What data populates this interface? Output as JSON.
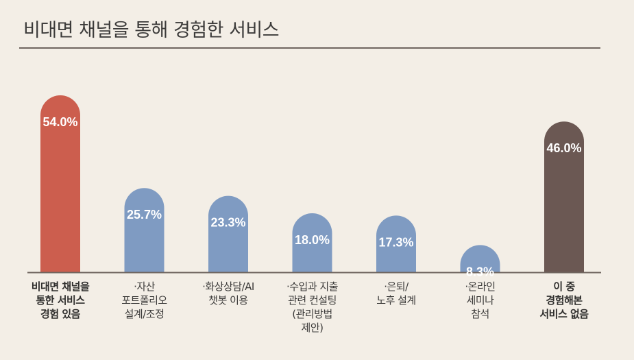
{
  "title": "비대면 채널을 통해 경험한 서비스",
  "chart_data": {
    "type": "bar",
    "title": "비대면 채널을 통해 경험한 서비스",
    "xlabel": "",
    "ylabel": "",
    "ylim": [
      0,
      54
    ],
    "grid": false,
    "categories": [
      "비대면 채널을\n통한 서비스\n경험 있음",
      "·자산\n포트폴리오\n설계/조정",
      "·화상상담/AI\n챗봇 이용",
      "·수입과 지출\n관련 컨설팅\n(관리방법\n제안)",
      "·은퇴/\n노후 설계",
      "·온라인\n세미나\n참석",
      "이 중\n경험해본\n서비스 없음"
    ],
    "values": [
      54.0,
      25.7,
      23.3,
      18.0,
      17.3,
      8.3,
      46.0
    ],
    "value_labels": [
      "54.0%",
      "25.7%",
      "23.3%",
      "18.0%",
      "17.3%",
      "8.3%",
      "46.0%"
    ],
    "colors": [
      "#cc5e4e",
      "#7f9bc2",
      "#7f9bc2",
      "#7f9bc2",
      "#7f9bc2",
      "#7f9bc2",
      "#6b5853"
    ],
    "bold_categories": [
      0,
      6
    ]
  }
}
